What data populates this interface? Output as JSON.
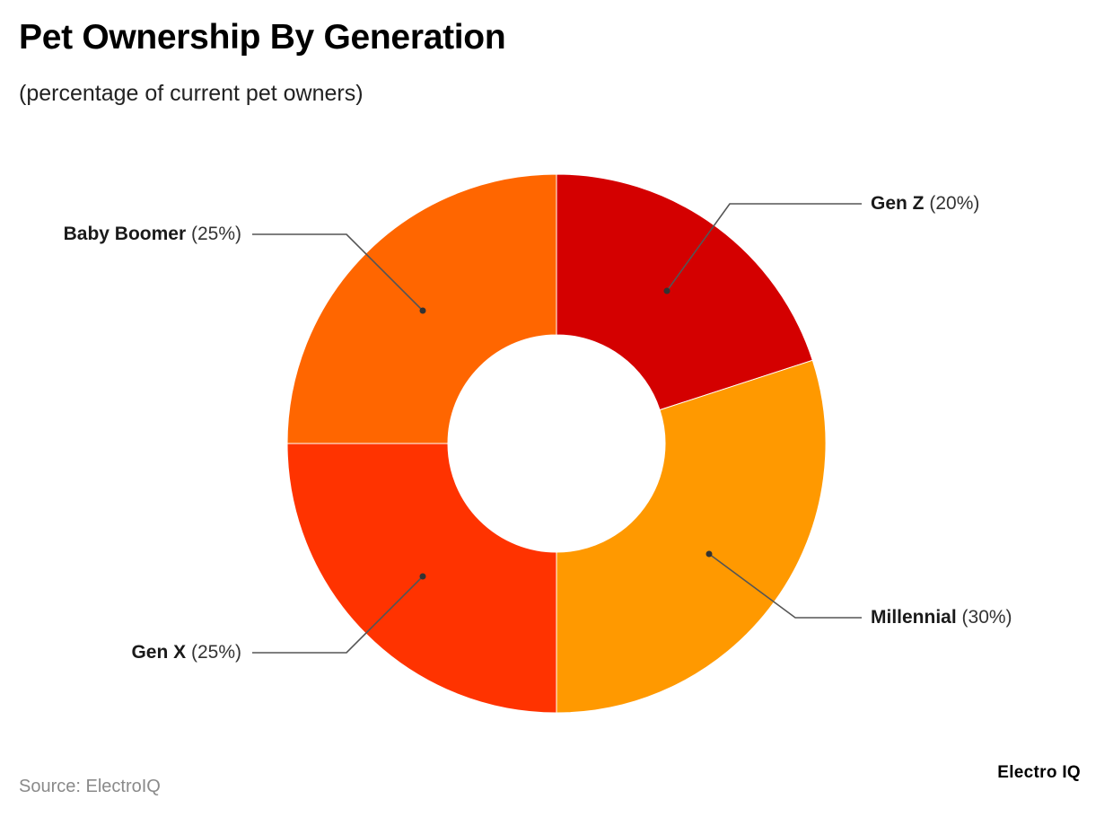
{
  "header": {
    "title": "Pet Ownership By Generation",
    "subtitle": "(percentage of current pet owners)"
  },
  "footer": {
    "source": "Source: ElectroIQ",
    "brand": "Electro IQ"
  },
  "labels": {
    "gen_z": {
      "name": "Gen Z",
      "pct": "(20%)"
    },
    "millennial": {
      "name": "Millennial",
      "pct": "(30%)"
    },
    "gen_x": {
      "name": "Gen X",
      "pct": "(25%)"
    },
    "baby_boomer": {
      "name": "Baby Boomer",
      "pct": "(25%)"
    }
  },
  "colors": {
    "gen_z": "#d40000",
    "millennial": "#ff9900",
    "gen_x": "#ff3300",
    "baby_boomer": "#ff6600",
    "leader_line": "#555555"
  },
  "chart_data": {
    "type": "pie",
    "variant": "donut",
    "title": "Pet Ownership By Generation",
    "subtitle": "(percentage of current pet owners)",
    "categories": [
      "Gen Z",
      "Millennial",
      "Gen X",
      "Baby Boomer"
    ],
    "values": [
      20,
      30,
      25,
      25
    ],
    "unit": "%",
    "colors": [
      "#d40000",
      "#ff9900",
      "#ff3300",
      "#ff6600"
    ],
    "start_angle": "12 o'clock, clockwise",
    "legend": "none (callout labels with leader lines)",
    "source": "Source: ElectroIQ"
  }
}
